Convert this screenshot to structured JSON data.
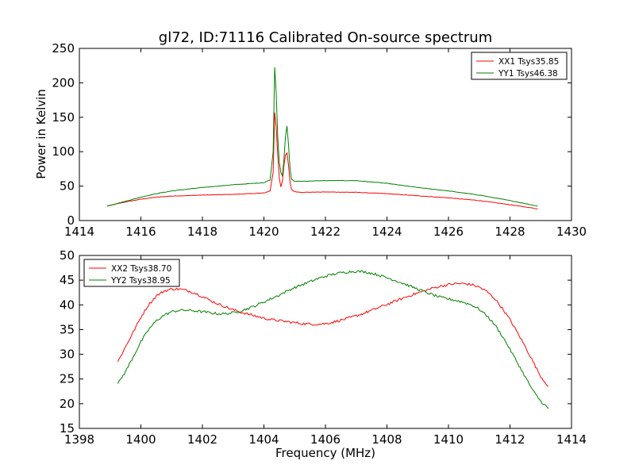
{
  "chart_data": [
    {
      "type": "line",
      "title": "gl72, ID:71116 Calibrated On-source spectrum",
      "xlabel": "",
      "ylabel": "Power in Kelvin",
      "xlim": [
        1414,
        1430
      ],
      "ylim": [
        0,
        250
      ],
      "xticks": [
        "1414",
        "1416",
        "1418",
        "1420",
        "1422",
        "1424",
        "1426",
        "1428",
        "1430"
      ],
      "yticks": [
        "0",
        "50",
        "100",
        "150",
        "200",
        "250"
      ],
      "legend_position": "top-right",
      "grid": false,
      "series": [
        {
          "name": "XX1 Tsys35.85",
          "color": "#ff0000",
          "x": [
            1414.9,
            1415.5,
            1416.0,
            1416.5,
            1417.0,
            1418.0,
            1419.0,
            1420.0,
            1420.2,
            1420.3,
            1420.35,
            1420.4,
            1420.45,
            1420.5,
            1420.55,
            1420.6,
            1420.65,
            1420.7,
            1420.75,
            1420.8,
            1420.85,
            1420.9,
            1421.0,
            1421.2,
            1422.0,
            1423.0,
            1424.0,
            1425.0,
            1426.0,
            1427.0,
            1428.0,
            1428.9
          ],
          "y": [
            21,
            27,
            31,
            34,
            35.5,
            37,
            38,
            40,
            43,
            70,
            157,
            135,
            95,
            62,
            49,
            56,
            80,
            95,
            98,
            80,
            55,
            45,
            42,
            41,
            41.5,
            41,
            39,
            36,
            33,
            29,
            23,
            17
          ]
        },
        {
          "name": "YY1 Tsys46.38",
          "color": "#008000",
          "x": [
            1414.9,
            1415.5,
            1416.0,
            1416.5,
            1417.0,
            1418.0,
            1419.0,
            1420.0,
            1420.2,
            1420.3,
            1420.35,
            1420.4,
            1420.45,
            1420.5,
            1420.55,
            1420.6,
            1420.65,
            1420.7,
            1420.75,
            1420.8,
            1420.85,
            1420.9,
            1421.0,
            1421.2,
            1422.0,
            1423.0,
            1424.0,
            1425.0,
            1426.0,
            1427.0,
            1428.0,
            1428.9
          ],
          "y": [
            21,
            28,
            34,
            39,
            43,
            48,
            52,
            55,
            59,
            100,
            223,
            185,
            120,
            85,
            70,
            65,
            88,
            122,
            137,
            110,
            75,
            60,
            57,
            57,
            58,
            58,
            54,
            48,
            43,
            37,
            29,
            21
          ]
        }
      ]
    },
    {
      "type": "line",
      "title": "",
      "xlabel": "Frequency (MHz)",
      "ylabel": "",
      "xlim": [
        1398,
        1414
      ],
      "ylim": [
        15,
        50
      ],
      "xticks": [
        "1398",
        "1400",
        "1402",
        "1404",
        "1406",
        "1408",
        "1410",
        "1412",
        "1414"
      ],
      "yticks": [
        "15",
        "20",
        "25",
        "30",
        "35",
        "40",
        "45",
        "50"
      ],
      "legend_position": "top-left",
      "grid": false,
      "series": [
        {
          "name": "XX2 Tsys38.70",
          "color": "#ff0000",
          "x": [
            1399.25,
            1399.5,
            1399.75,
            1400.0,
            1400.25,
            1400.5,
            1400.75,
            1401.0,
            1401.25,
            1401.5,
            1401.75,
            1402.0,
            1402.25,
            1402.5,
            1402.75,
            1403.0,
            1403.25,
            1403.5,
            1403.75,
            1404.0,
            1404.25,
            1404.5,
            1404.75,
            1405.0,
            1405.25,
            1405.5,
            1405.75,
            1406.0,
            1406.25,
            1406.5,
            1406.75,
            1407.0,
            1407.25,
            1407.5,
            1407.75,
            1408.0,
            1408.25,
            1408.5,
            1408.75,
            1409.0,
            1409.25,
            1409.5,
            1409.75,
            1410.0,
            1410.25,
            1410.5,
            1410.75,
            1411.0,
            1411.25,
            1411.5,
            1411.75,
            1412.0,
            1412.25,
            1412.5,
            1412.75,
            1413.0,
            1413.25
          ],
          "y": [
            28.5,
            31.5,
            34.5,
            37.5,
            40.0,
            41.8,
            42.8,
            43.2,
            43.2,
            42.9,
            42.4,
            41.7,
            40.9,
            40.2,
            39.6,
            39.0,
            38.5,
            38.1,
            37.7,
            37.3,
            37.0,
            36.8,
            36.6,
            36.4,
            36.2,
            36.1,
            36.1,
            36.2,
            36.5,
            36.9,
            37.3,
            37.8,
            38.3,
            38.9,
            39.5,
            40.1,
            40.7,
            41.3,
            41.9,
            42.4,
            42.9,
            43.4,
            43.8,
            44.1,
            44.3,
            44.3,
            44.1,
            43.6,
            42.7,
            41.3,
            39.3,
            37.0,
            34.3,
            31.5,
            28.5,
            25.5,
            23.5
          ]
        },
        {
          "name": "YY2 Tsys38.95",
          "color": "#008000",
          "x": [
            1399.25,
            1399.5,
            1399.75,
            1400.0,
            1400.25,
            1400.5,
            1400.75,
            1401.0,
            1401.25,
            1401.5,
            1401.75,
            1402.0,
            1402.25,
            1402.5,
            1402.75,
            1403.0,
            1403.25,
            1403.5,
            1403.75,
            1404.0,
            1404.25,
            1404.5,
            1404.75,
            1405.0,
            1405.25,
            1405.5,
            1405.75,
            1406.0,
            1406.25,
            1406.5,
            1406.75,
            1407.0,
            1407.25,
            1407.5,
            1407.75,
            1408.0,
            1408.25,
            1408.5,
            1408.75,
            1409.0,
            1409.25,
            1409.5,
            1409.75,
            1410.0,
            1410.25,
            1410.5,
            1410.75,
            1411.0,
            1411.25,
            1411.5,
            1411.75,
            1412.0,
            1412.25,
            1412.5,
            1412.75,
            1413.0,
            1413.25
          ],
          "y": [
            24.0,
            26.5,
            29.5,
            32.5,
            35.0,
            36.8,
            37.9,
            38.6,
            38.9,
            38.9,
            38.8,
            38.6,
            38.4,
            38.2,
            38.2,
            38.4,
            38.8,
            39.3,
            39.9,
            40.6,
            41.3,
            42.0,
            42.8,
            43.5,
            44.1,
            44.7,
            45.3,
            45.8,
            46.2,
            46.5,
            46.7,
            46.8,
            46.7,
            46.4,
            46.0,
            45.5,
            45.0,
            44.4,
            43.8,
            43.2,
            42.6,
            42.0,
            41.5,
            41.2,
            40.9,
            40.5,
            40.0,
            39.1,
            37.8,
            36.0,
            33.7,
            31.0,
            28.2,
            25.4,
            22.6,
            20.5,
            19.0
          ]
        }
      ]
    }
  ]
}
